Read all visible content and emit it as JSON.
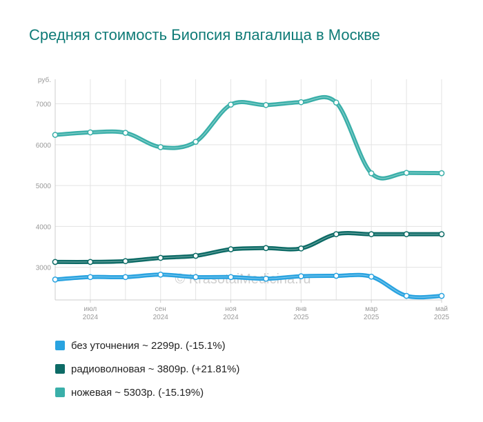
{
  "title": "Средняя стоимость Биопсия влагалища в Москве",
  "watermark": "© KrasotaiMedicina.ru",
  "chart_data": {
    "type": "line",
    "title": "Средняя стоимость Биопсия влагалища в Москве",
    "ylabel": "руб.",
    "ylim": [
      2200,
      7600
    ],
    "yticks": [
      3000,
      4000,
      5000,
      6000,
      7000
    ],
    "grid": true,
    "legend_position": "bottom",
    "x": [
      "2024-06",
      "2024-07",
      "2024-08",
      "2024-09",
      "2024-10",
      "2024-11",
      "2024-12",
      "2025-01",
      "2025-02",
      "2025-03",
      "2025-04",
      "2025-05"
    ],
    "xticks": [
      {
        "x": "2024-07",
        "month": "июл",
        "year": "2024"
      },
      {
        "x": "2024-09",
        "month": "сен",
        "year": "2024"
      },
      {
        "x": "2024-11",
        "month": "ноя",
        "year": "2024"
      },
      {
        "x": "2025-01",
        "month": "янв",
        "year": "2025"
      },
      {
        "x": "2025-03",
        "month": "мар",
        "year": "2025"
      },
      {
        "x": "2025-05",
        "month": "май",
        "year": "2025"
      }
    ],
    "series": [
      {
        "name": "ножевая",
        "color": "#3aafa9",
        "values": [
          6240,
          6300,
          6290,
          5940,
          6070,
          6980,
          6970,
          7040,
          7030,
          5300,
          5310,
          5303
        ]
      },
      {
        "name": "радиоволновая",
        "color": "#0d6b66",
        "values": [
          3130,
          3130,
          3150,
          3230,
          3280,
          3440,
          3470,
          3460,
          3810,
          3810,
          3810,
          3809
        ]
      },
      {
        "name": "без уточнения",
        "color": "#29a3e0",
        "values": [
          2700,
          2760,
          2760,
          2820,
          2760,
          2760,
          2720,
          2780,
          2790,
          2770,
          2300,
          2299
        ]
      }
    ]
  },
  "legend": [
    {
      "label": "без уточнения ~ 2299р. (-15.1%)",
      "color": "#29a3e0"
    },
    {
      "label": "радиоволновая ~ 3809р. (+21.81%)",
      "color": "#0d6b66"
    },
    {
      "label": "ножевая ~ 5303р. (-15.19%)",
      "color": "#3aafa9"
    }
  ]
}
